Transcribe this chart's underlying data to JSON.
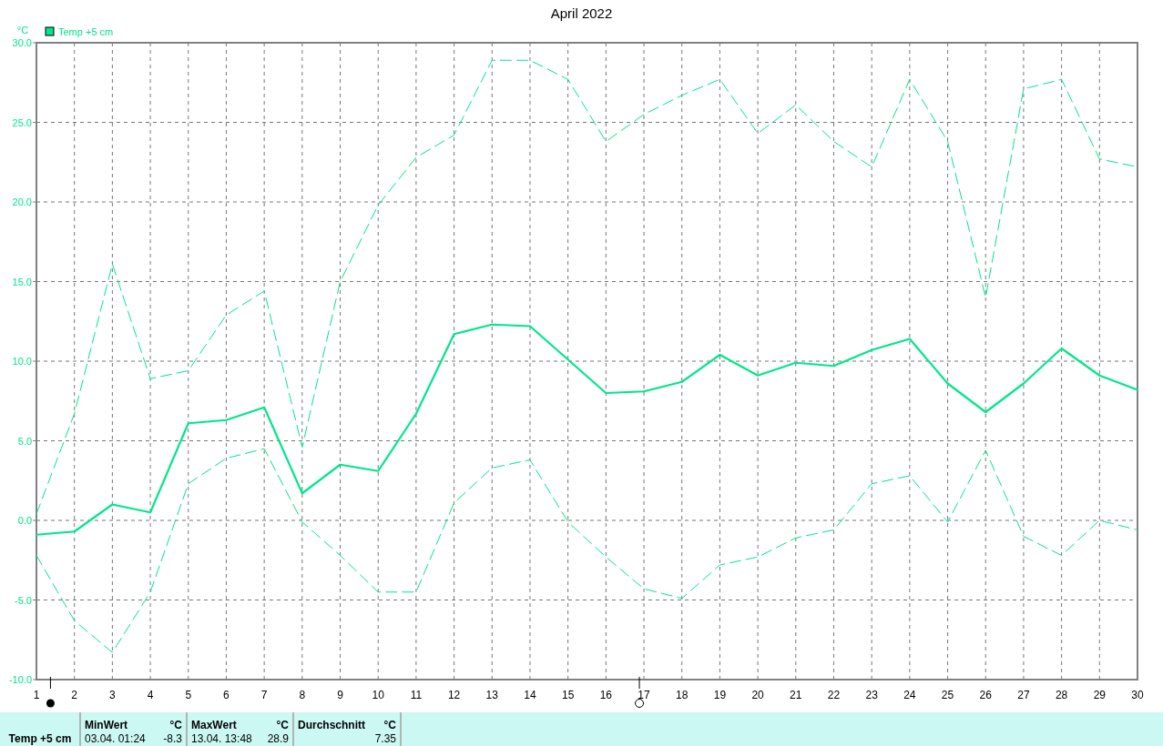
{
  "chart_data": {
    "type": "line",
    "title": "April 2022",
    "ylabel": "°C",
    "legend": "top left",
    "grid": true,
    "xlim": [
      1,
      30
    ],
    "xticks": [
      1,
      2,
      3,
      4,
      5,
      6,
      7,
      8,
      9,
      10,
      11,
      12,
      13,
      14,
      15,
      16,
      17,
      18,
      19,
      20,
      21,
      22,
      23,
      24,
      25,
      26,
      27,
      28,
      29,
      30
    ],
    "ylim": [
      -10,
      30
    ],
    "yticks": [
      {
        "value": -10,
        "label": "-10.0"
      },
      {
        "value": -5,
        "label": "-5.0"
      },
      {
        "value": 0,
        "label": "0.0"
      },
      {
        "value": 5,
        "label": "5.0"
      },
      {
        "value": 10,
        "label": "10.0"
      },
      {
        "value": 15,
        "label": "15.0"
      },
      {
        "value": 20,
        "label": "20.0"
      },
      {
        "value": 25,
        "label": "25.0"
      },
      {
        "value": 30,
        "label": "30.0"
      }
    ],
    "x": [
      1,
      2,
      3,
      4,
      5,
      6,
      7,
      8,
      9,
      10,
      11,
      12,
      13,
      14,
      15,
      16,
      17,
      18,
      19,
      20,
      21,
      22,
      23,
      24,
      25,
      26,
      27,
      28,
      29,
      30
    ],
    "series": [
      {
        "name": "Temp +5 cm",
        "color": "#00e68a",
        "line_style": "solid",
        "values": [
          -0.9,
          -0.7,
          1.0,
          0.5,
          6.1,
          6.3,
          7.1,
          1.7,
          3.5,
          3.1,
          6.7,
          11.7,
          12.3,
          12.2,
          10.1,
          8.0,
          8.1,
          8.7,
          10.4,
          9.1,
          9.9,
          9.7,
          10.7,
          11.4,
          8.6,
          6.8,
          8.6,
          10.8,
          9.1,
          8.2
        ]
      },
      {
        "color": "#00e68a",
        "line_style": "dashed",
        "values": [
          0.4,
          6.7,
          16.1,
          8.9,
          9.4,
          12.9,
          14.4,
          4.6,
          15.0,
          19.8,
          22.8,
          24.2,
          28.9,
          28.9,
          27.7,
          23.8,
          25.5,
          26.7,
          27.7,
          24.3,
          26.1,
          23.8,
          22.2,
          27.7,
          23.8,
          14.0,
          27.1,
          27.7,
          22.7,
          22.2
        ]
      },
      {
        "color": "#00e68a",
        "line_style": "dashed",
        "values": [
          -2.2,
          -6.3,
          -8.3,
          -4.5,
          2.3,
          3.9,
          4.5,
          -0.1,
          -2.2,
          -4.5,
          -4.5,
          1.1,
          3.3,
          3.8,
          -0.1,
          -2.3,
          -4.3,
          -4.9,
          -2.8,
          -2.3,
          -1.1,
          -0.6,
          2.3,
          2.8,
          -0.1,
          4.4,
          -1.0,
          -2.2,
          0.0,
          -0.6
        ]
      }
    ],
    "annotations": [
      "Temp +5 cm",
      "MinWert",
      "°C",
      "03.04.  01:24",
      "-8.3",
      "MaxWert",
      "°C",
      "13.04.  13:48",
      "28.9",
      "Durchschnitt",
      "°C",
      "7.35"
    ]
  }
}
